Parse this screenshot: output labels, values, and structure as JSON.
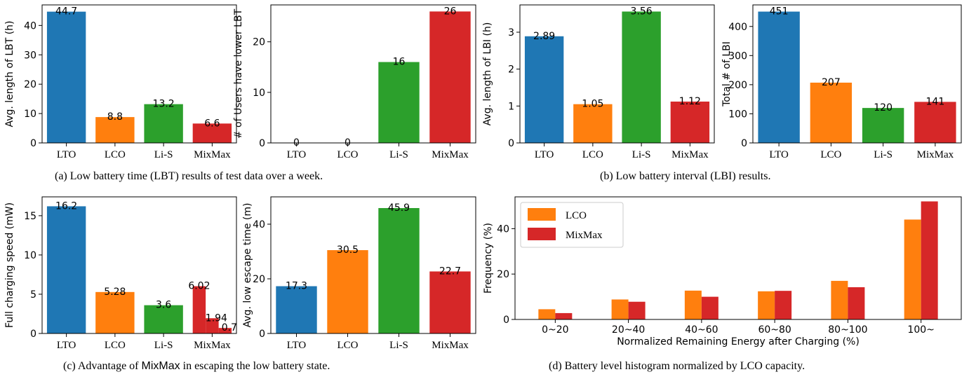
{
  "captions": {
    "a": "(a) Low battery time (LBT) results of test data over a week.",
    "b": "(b) Low battery interval (LBI) results.",
    "c_pre": "(c) Advantage of ",
    "c_mm": "MixMax",
    "c_post": " in escaping the low battery state.",
    "d": "(d) Battery level histogram normalized by LCO capacity."
  },
  "colors": {
    "blue": "#1f77b4",
    "orange": "#ff7f0e",
    "green": "#2ca02c",
    "red": "#d62728"
  },
  "chart_data": [
    {
      "type": "bar",
      "categories": [
        "LTO",
        "LCO",
        "Li-S",
        "MixMax"
      ],
      "values": [
        44.7,
        8.8,
        13.2,
        6.6
      ],
      "labels": [
        "44.7",
        "8.8",
        "13.2",
        "6.6"
      ],
      "ylabel": "Avg. length of LBT (h)",
      "ylim": [
        0,
        47
      ],
      "yticks": [
        0,
        10,
        20,
        30,
        40
      ]
    },
    {
      "type": "bar",
      "categories": [
        "LTO",
        "LCO",
        "Li-S",
        "MixMax"
      ],
      "values": [
        0,
        0,
        16,
        26
      ],
      "labels": [
        "0",
        "0",
        "16",
        "26"
      ],
      "ylabel": "# of Users have lower LBT",
      "ylim": [
        0,
        27.3
      ],
      "yticks": [
        0,
        10,
        20
      ]
    },
    {
      "type": "bar",
      "categories": [
        "LTO",
        "LCO",
        "Li-S",
        "MixMax"
      ],
      "values": [
        2.89,
        1.05,
        3.56,
        1.12
      ],
      "labels": [
        "2.89",
        "1.05",
        "3.56",
        "1.12"
      ],
      "ylabel": "Avg. length of LBI (h)",
      "ylim": [
        0,
        3.74
      ],
      "yticks": [
        0,
        1,
        2,
        3
      ]
    },
    {
      "type": "bar",
      "categories": [
        "LTO",
        "LCO",
        "Li-S",
        "MixMax"
      ],
      "values": [
        451,
        207,
        120,
        141
      ],
      "labels": [
        "451",
        "207",
        "120",
        "141"
      ],
      "ylabel": "Total # of LBI",
      "ylim": [
        0,
        474
      ],
      "yticks": [
        0,
        100,
        200,
        300,
        400
      ]
    },
    {
      "type": "bar",
      "categories": [
        "LTO",
        "LCO",
        "Li-S",
        "MixMax"
      ],
      "values": [
        16.2,
        5.28,
        3.6
      ],
      "labels": [
        "16.2",
        "5.28",
        "3.6"
      ],
      "mixmax_values": [
        6.02,
        1.94,
        0.7
      ],
      "mixmax_labels": [
        "6.02",
        "1.94",
        "0.7"
      ],
      "ylabel": "Full charging speed (mW)",
      "ylim": [
        0,
        17.4
      ],
      "yticks": [
        0,
        5,
        10,
        15
      ]
    },
    {
      "type": "bar",
      "categories": [
        "LTO",
        "LCO",
        "Li-S",
        "MixMax"
      ],
      "values": [
        17.3,
        30.5,
        45.9,
        22.7
      ],
      "labels": [
        "17.3",
        "30.5",
        "45.9",
        "22.7"
      ],
      "ylabel": "Avg. low escape time (m)",
      "ylim": [
        0,
        50
      ],
      "yticks": [
        0,
        20,
        40
      ]
    },
    {
      "type": "bar",
      "categories": [
        "0~20",
        "20~40",
        "40~60",
        "60~80",
        "80~100",
        "100~"
      ],
      "series": [
        {
          "name": "LCO",
          "values": [
            4.5,
            8.8,
            12.7,
            12.4,
            17.0,
            44.0
          ]
        },
        {
          "name": "MixMax",
          "values": [
            2.8,
            7.8,
            10.0,
            12.6,
            14.2,
            52.0
          ]
        }
      ],
      "xlabel": "Normalized Remaining Energy after Charging (%)",
      "ylabel": "Frequency (%)",
      "ylim": [
        0,
        54
      ],
      "yticks": [
        0,
        20,
        40
      ],
      "legend": "top-left"
    }
  ]
}
